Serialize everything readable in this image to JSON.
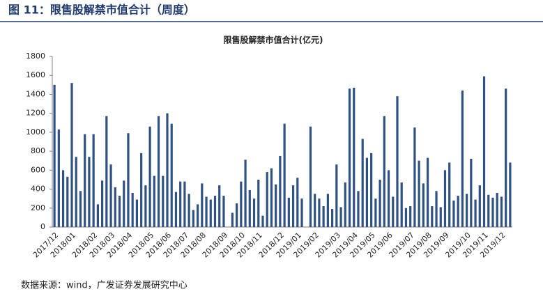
{
  "header": "图 11：限售股解禁市值合计（周度）",
  "source": "数据来源：wind，广发证券发展研究中心",
  "chart_data": {
    "type": "bar",
    "title": "限售股解禁市值合计(亿元)",
    "color": "#2f5183",
    "grid": false,
    "categories": [
      "2017/12",
      null,
      null,
      null,
      "2018/01",
      null,
      null,
      null,
      null,
      "2018/02",
      null,
      null,
      null,
      "2018/03",
      null,
      null,
      null,
      "2018/04",
      null,
      null,
      null,
      null,
      "2018/05",
      null,
      null,
      null,
      "2018/06",
      null,
      null,
      null,
      "2018/07",
      null,
      null,
      null,
      "2018/08",
      null,
      null,
      null,
      null,
      "2018/09",
      null,
      null,
      null,
      "2018/10",
      null,
      null,
      null,
      "2018/11",
      null,
      null,
      null,
      null,
      "2018/12",
      null,
      null,
      null,
      "2019/01",
      null,
      null,
      null,
      "2019/02",
      null,
      null,
      null,
      null,
      "2019/03",
      null,
      null,
      null,
      "2019/04",
      null,
      null,
      null,
      "2019/05",
      null,
      null,
      null,
      "2019/06",
      null,
      null,
      null,
      null,
      "2019/07",
      null,
      null,
      null,
      "2019/08",
      null,
      null,
      null,
      "2019/09",
      null,
      null,
      null,
      null,
      "2019/10",
      null,
      null,
      null,
      "2019/11",
      null,
      null,
      null,
      "2019/12",
      null,
      null
    ],
    "values": [
      1500,
      1030,
      600,
      530,
      1520,
      740,
      380,
      980,
      740,
      980,
      240,
      490,
      1170,
      660,
      420,
      330,
      490,
      990,
      360,
      290,
      780,
      440,
      1060,
      540,
      1170,
      540,
      1200,
      1090,
      370,
      480,
      480,
      350,
      180,
      240,
      460,
      320,
      290,
      330,
      440,
      330,
      0,
      150,
      250,
      480,
      710,
      390,
      300,
      500,
      120,
      580,
      620,
      450,
      750,
      1090,
      310,
      440,
      520,
      300,
      0,
      1060,
      350,
      300,
      220,
      350,
      190,
      660,
      210,
      470,
      1460,
      1470,
      380,
      930,
      730,
      780,
      300,
      500,
      1170,
      600,
      320,
      1380,
      470,
      200,
      220,
      1050,
      700,
      460,
      730,
      220,
      380,
      210,
      600,
      680,
      280,
      330,
      1440,
      350,
      720,
      290,
      440,
      1590,
      340,
      310,
      360,
      320,
      1460,
      680
    ],
    "ylim": [
      0,
      1800
    ],
    "yticks": [
      0,
      200,
      400,
      600,
      800,
      1000,
      1200,
      1400,
      1600,
      1800
    ]
  }
}
